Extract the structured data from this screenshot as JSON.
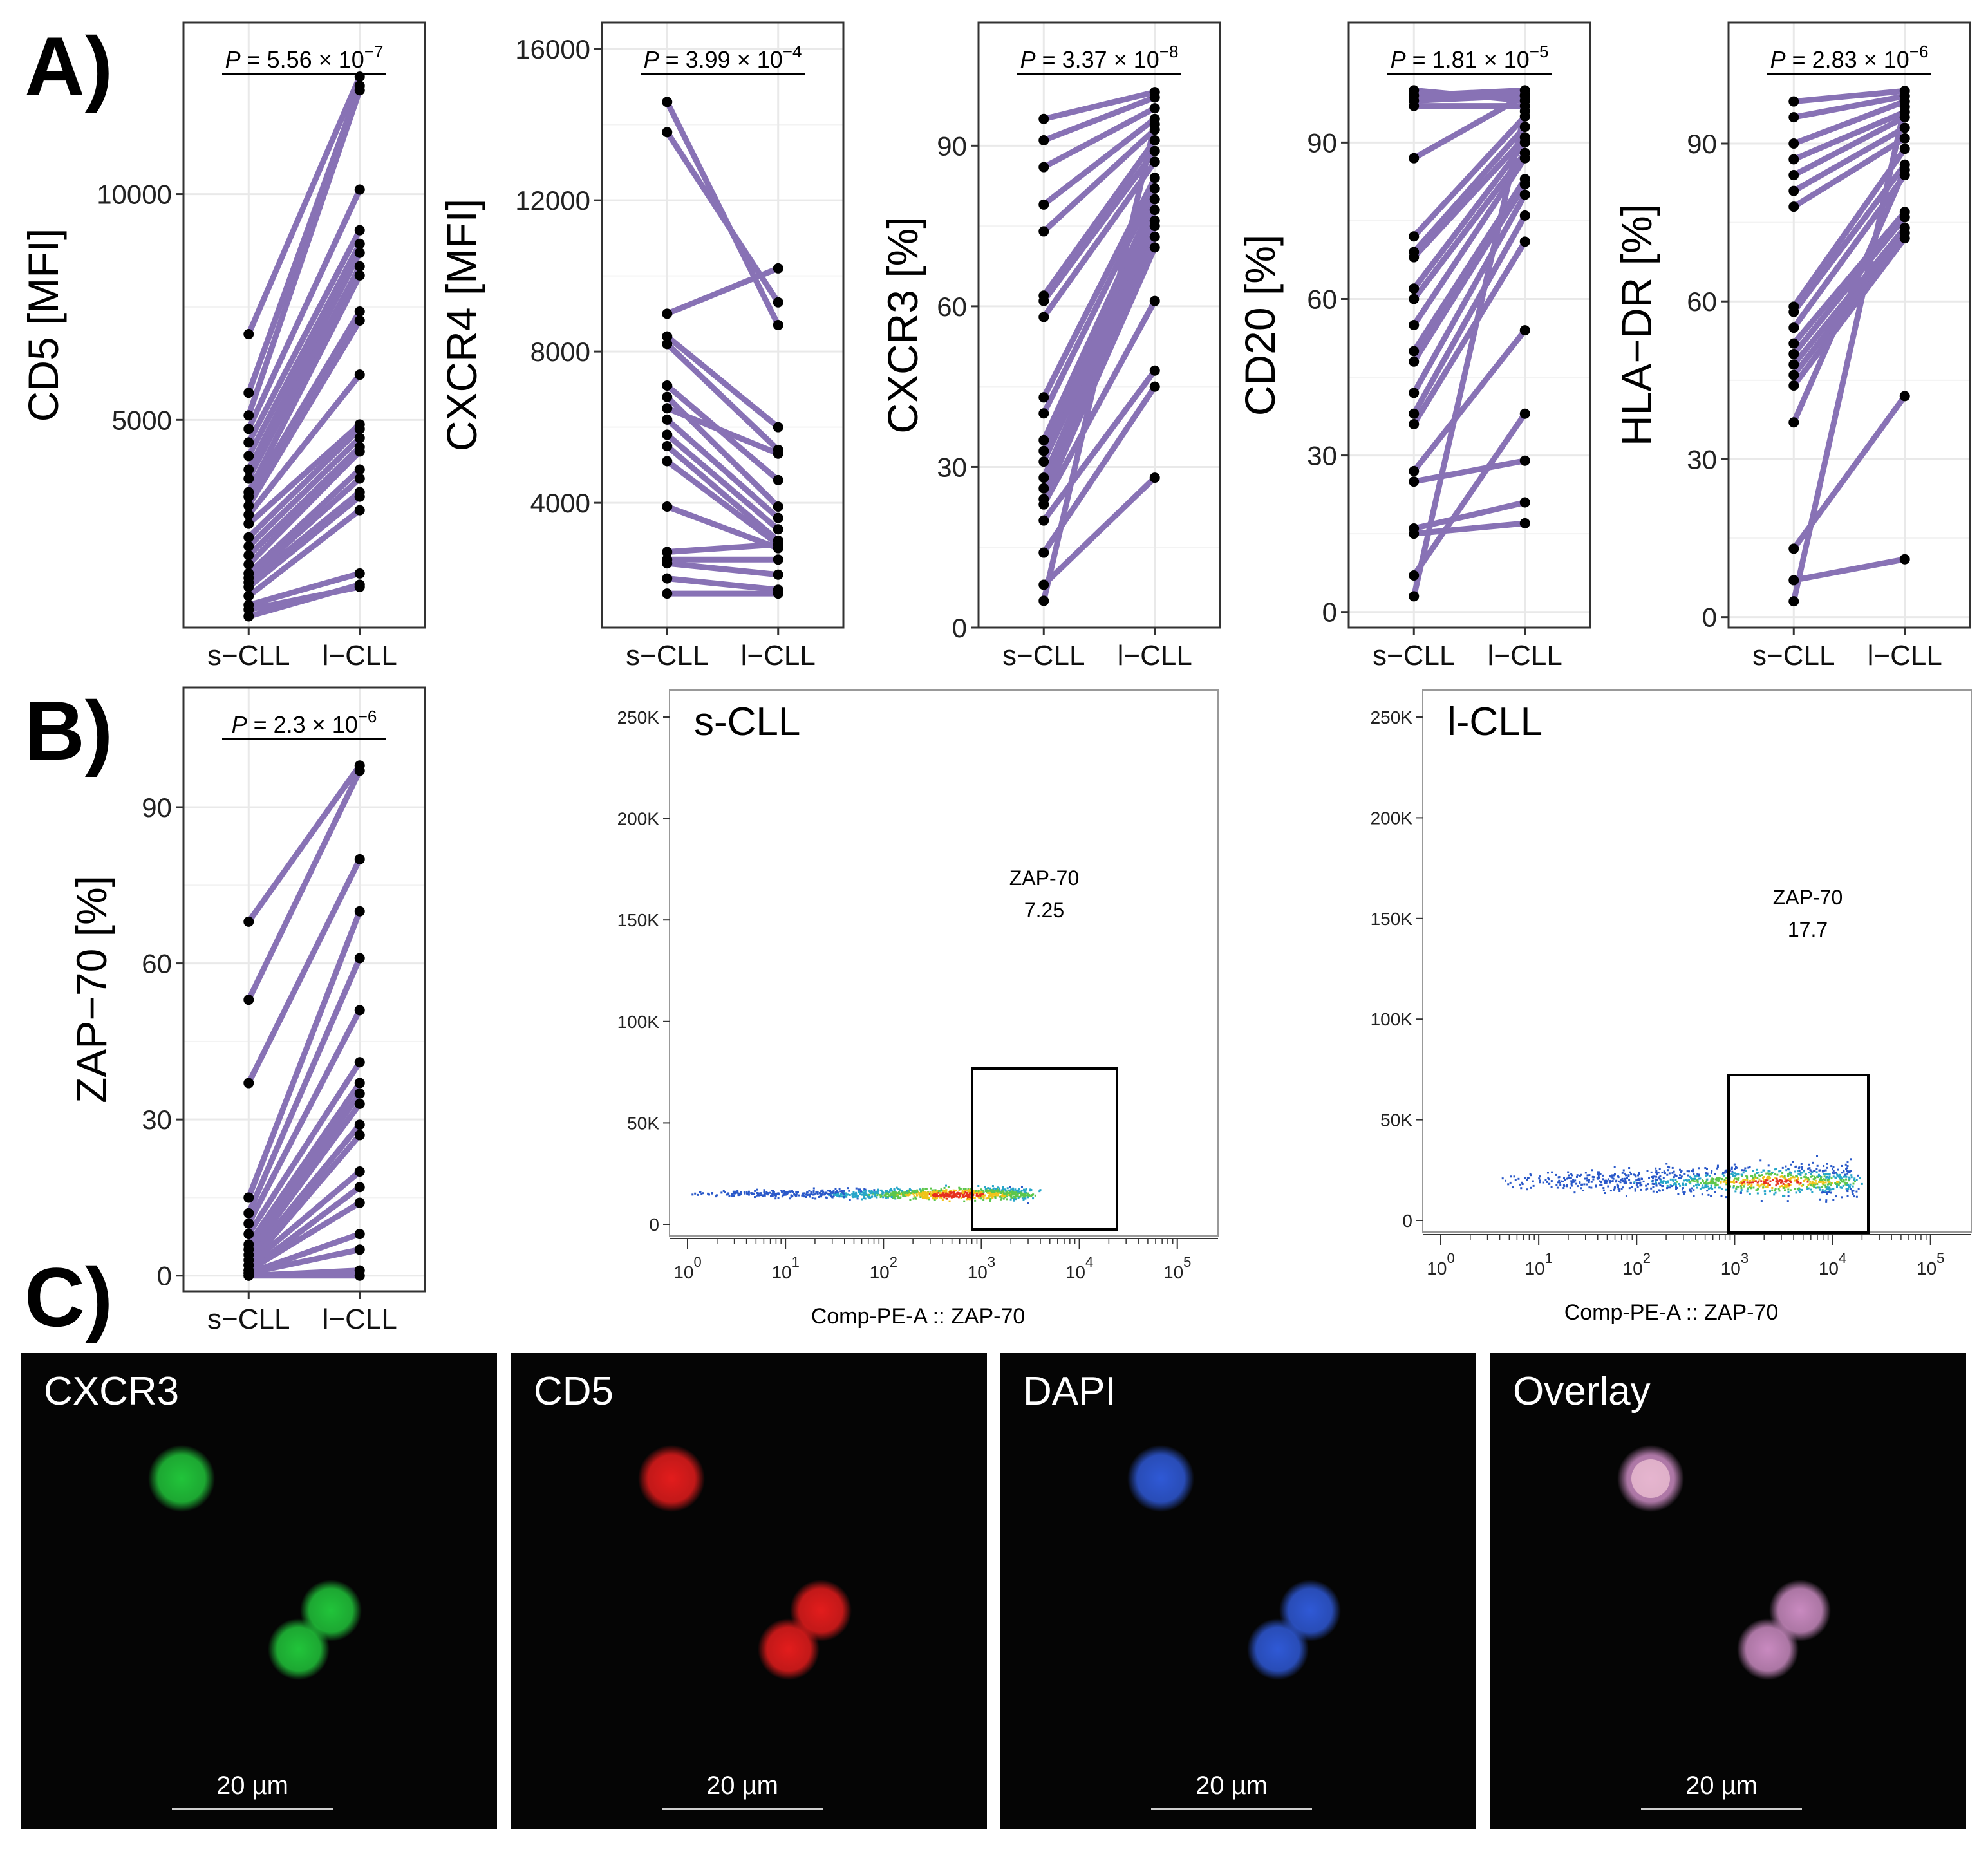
{
  "panel_labels": {
    "a": "A)",
    "b": "B)",
    "c": "C)"
  },
  "chart_data": [
    {
      "type": "line",
      "id": "cd5",
      "ylabel": "CD5 [MFI]",
      "pvalue": "P = 5.56 × 10^-7",
      "p_mantissa": "5.56",
      "p_exp": "−7",
      "categories": [
        "s−CLL",
        "l−CLL"
      ],
      "ylim": [
        400,
        13800
      ],
      "yticks": [
        5000,
        10000
      ],
      "ytick_labels": [
        "5000",
        "10000"
      ],
      "pairs": [
        [
          6900,
          12600
        ],
        [
          5600,
          12400
        ],
        [
          5100,
          12300
        ],
        [
          4800,
          10100
        ],
        [
          4500,
          9200
        ],
        [
          4200,
          8900
        ],
        [
          3900,
          8700
        ],
        [
          3700,
          8400
        ],
        [
          3400,
          8200
        ],
        [
          3300,
          7400
        ],
        [
          3100,
          7200
        ],
        [
          2900,
          6000
        ],
        [
          2700,
          4900
        ],
        [
          2400,
          4800
        ],
        [
          2200,
          4600
        ],
        [
          2000,
          4400
        ],
        [
          1800,
          4300
        ],
        [
          1600,
          3900
        ],
        [
          1500,
          3700
        ],
        [
          1400,
          3400
        ],
        [
          1300,
          3300
        ],
        [
          1100,
          3000
        ],
        [
          900,
          1600
        ],
        [
          800,
          1300
        ],
        [
          650,
          1350
        ]
      ]
    },
    {
      "type": "line",
      "id": "cxcr4",
      "ylabel": "CXCR4 [MFI]",
      "pvalue": "P = 3.99 × 10^-4",
      "p_mantissa": "3.99",
      "p_exp": "−4",
      "categories": [
        "s−CLL",
        "l−CLL"
      ],
      "ylim": [
        700,
        16700
      ],
      "yticks": [
        4000,
        8000,
        12000,
        16000
      ],
      "ytick_labels": [
        "4000",
        "8000",
        "12000",
        "16000"
      ],
      "pairs": [
        [
          14600,
          8700
        ],
        [
          13800,
          9300
        ],
        [
          9000,
          10200
        ],
        [
          8400,
          6000
        ],
        [
          8200,
          5400
        ],
        [
          7100,
          4600
        ],
        [
          6800,
          3900
        ],
        [
          6500,
          5300
        ],
        [
          6200,
          3600
        ],
        [
          5800,
          3300
        ],
        [
          5500,
          3000
        ],
        [
          5100,
          2900
        ],
        [
          3900,
          2800
        ],
        [
          2700,
          2900
        ],
        [
          2500,
          2500
        ],
        [
          2400,
          2100
        ],
        [
          2000,
          1700
        ],
        [
          1600,
          1600
        ]
      ]
    },
    {
      "type": "line",
      "id": "cxcr3",
      "ylabel": "CXCR3 [%]",
      "pvalue": "P = 3.37 × 10^-8",
      "p_mantissa": "3.37",
      "p_exp": "−8",
      "categories": [
        "s−CLL",
        "l−CLL"
      ],
      "ylim": [
        0,
        113
      ],
      "yticks": [
        0,
        30,
        60,
        90
      ],
      "ytick_labels": [
        "0",
        "30",
        "60",
        "90"
      ],
      "pairs": [
        [
          95,
          100
        ],
        [
          91,
          99
        ],
        [
          86,
          97
        ],
        [
          79,
          95
        ],
        [
          74,
          93
        ],
        [
          62,
          91
        ],
        [
          61,
          89
        ],
        [
          58,
          87
        ],
        [
          43,
          84
        ],
        [
          40,
          82
        ],
        [
          35,
          80
        ],
        [
          33,
          78
        ],
        [
          31,
          76
        ],
        [
          28,
          75
        ],
        [
          26,
          73
        ],
        [
          24,
          71
        ],
        [
          23,
          61
        ],
        [
          20,
          48
        ],
        [
          14,
          45
        ],
        [
          8,
          28
        ],
        [
          5,
          94
        ]
      ]
    },
    {
      "type": "line",
      "id": "cd20",
      "ylabel": "CD20 [%]",
      "pvalue": "P = 1.81 × 10^-5",
      "p_mantissa": "1.81",
      "p_exp": "−5",
      "categories": [
        "s−CLL",
        "l−CLL"
      ],
      "ylim": [
        -3,
        113
      ],
      "yticks": [
        0,
        30,
        60,
        90
      ],
      "ytick_labels": [
        "0",
        "30",
        "60",
        "90"
      ],
      "pairs": [
        [
          100,
          98
        ],
        [
          99,
          100
        ],
        [
          98,
          99
        ],
        [
          97,
          97
        ],
        [
          87,
          99
        ],
        [
          72,
          95
        ],
        [
          69,
          93
        ],
        [
          68,
          91
        ],
        [
          62,
          90
        ],
        [
          60,
          88
        ],
        [
          55,
          87
        ],
        [
          50,
          83
        ],
        [
          48,
          82
        ],
        [
          42,
          80
        ],
        [
          38,
          76
        ],
        [
          36,
          71
        ],
        [
          27,
          54
        ],
        [
          25,
          29
        ],
        [
          16,
          21
        ],
        [
          15,
          17
        ],
        [
          7,
          38
        ],
        [
          3,
          96
        ]
      ]
    },
    {
      "type": "line",
      "id": "hladr",
      "ylabel": "HLA−DR [%]",
      "pvalue": "P = 2.83 × 10^-6",
      "p_mantissa": "2.83",
      "p_exp": "−6",
      "categories": [
        "s−CLL",
        "l−CLL"
      ],
      "ylim": [
        -2,
        113
      ],
      "yticks": [
        0,
        30,
        60,
        90
      ],
      "ytick_labels": [
        "0",
        "30",
        "60",
        "90"
      ],
      "pairs": [
        [
          98,
          100
        ],
        [
          95,
          99
        ],
        [
          90,
          98
        ],
        [
          87,
          96
        ],
        [
          84,
          95
        ],
        [
          81,
          93
        ],
        [
          78,
          91
        ],
        [
          59,
          89
        ],
        [
          58,
          86
        ],
        [
          55,
          84
        ],
        [
          52,
          77
        ],
        [
          50,
          76
        ],
        [
          48,
          74
        ],
        [
          46,
          73
        ],
        [
          44,
          72
        ],
        [
          37,
          85
        ],
        [
          13,
          42
        ],
        [
          7,
          11
        ],
        [
          3,
          97
        ]
      ]
    },
    {
      "type": "line",
      "id": "zap70",
      "ylabel": "ZAP−70 [%]",
      "pvalue": "P = 2.3 × 10^-6",
      "p_mantissa": "2.3",
      "p_exp": "−6",
      "categories": [
        "s−CLL",
        "l−CLL"
      ],
      "ylim": [
        -3,
        113
      ],
      "yticks": [
        0,
        30,
        60,
        90
      ],
      "ytick_labels": [
        "0",
        "30",
        "60",
        "90"
      ],
      "pairs": [
        [
          68,
          98
        ],
        [
          53,
          97
        ],
        [
          37,
          80
        ],
        [
          15,
          70
        ],
        [
          12,
          61
        ],
        [
          10,
          51
        ],
        [
          8,
          41
        ],
        [
          6,
          37
        ],
        [
          5,
          35
        ],
        [
          4,
          33
        ],
        [
          3,
          29
        ],
        [
          2,
          27
        ],
        [
          2,
          20
        ],
        [
          1,
          17
        ],
        [
          1,
          14
        ],
        [
          0.5,
          8
        ],
        [
          0.5,
          5
        ],
        [
          0,
          1
        ],
        [
          0,
          0
        ]
      ]
    }
  ],
  "flow": [
    {
      "id": "s-cll",
      "title": "s-CLL",
      "gate_name": "ZAP-70",
      "gate_value": "7.25",
      "x_axis_label": "Comp-PE-A :: ZAP-70",
      "y_ticks": [
        "0",
        "50K",
        "100K",
        "150K",
        "200K",
        "250K"
      ],
      "x_ticks": [
        "0",
        "1",
        "2",
        "3",
        "4",
        "5"
      ],
      "x_tick_base": "10"
    },
    {
      "id": "l-cll",
      "title": "l-CLL",
      "gate_name": "ZAP-70",
      "gate_value": "17.7",
      "x_axis_label": "Comp-PE-A :: ZAP-70",
      "y_ticks": [
        "0",
        "50K",
        "100K",
        "150K",
        "200K",
        "250K"
      ],
      "x_ticks": [
        "0",
        "1",
        "2",
        "3",
        "4",
        "5"
      ],
      "x_tick_base": "10"
    }
  ],
  "microscopy": [
    {
      "label": "CXCR3",
      "scale_bar": "20 µm",
      "color": "#21c43a"
    },
    {
      "label": "CD5",
      "scale_bar": "20 µm",
      "color": "#e31c1c"
    },
    {
      "label": "DAPI",
      "scale_bar": "20 µm",
      "color": "#2f59d6"
    },
    {
      "label": "Overlay",
      "scale_bar": "20 µm",
      "color": "#c98ac0"
    }
  ],
  "colors": {
    "line": "#8872b5",
    "point": "#000000",
    "grid": "#e9e9e9"
  }
}
